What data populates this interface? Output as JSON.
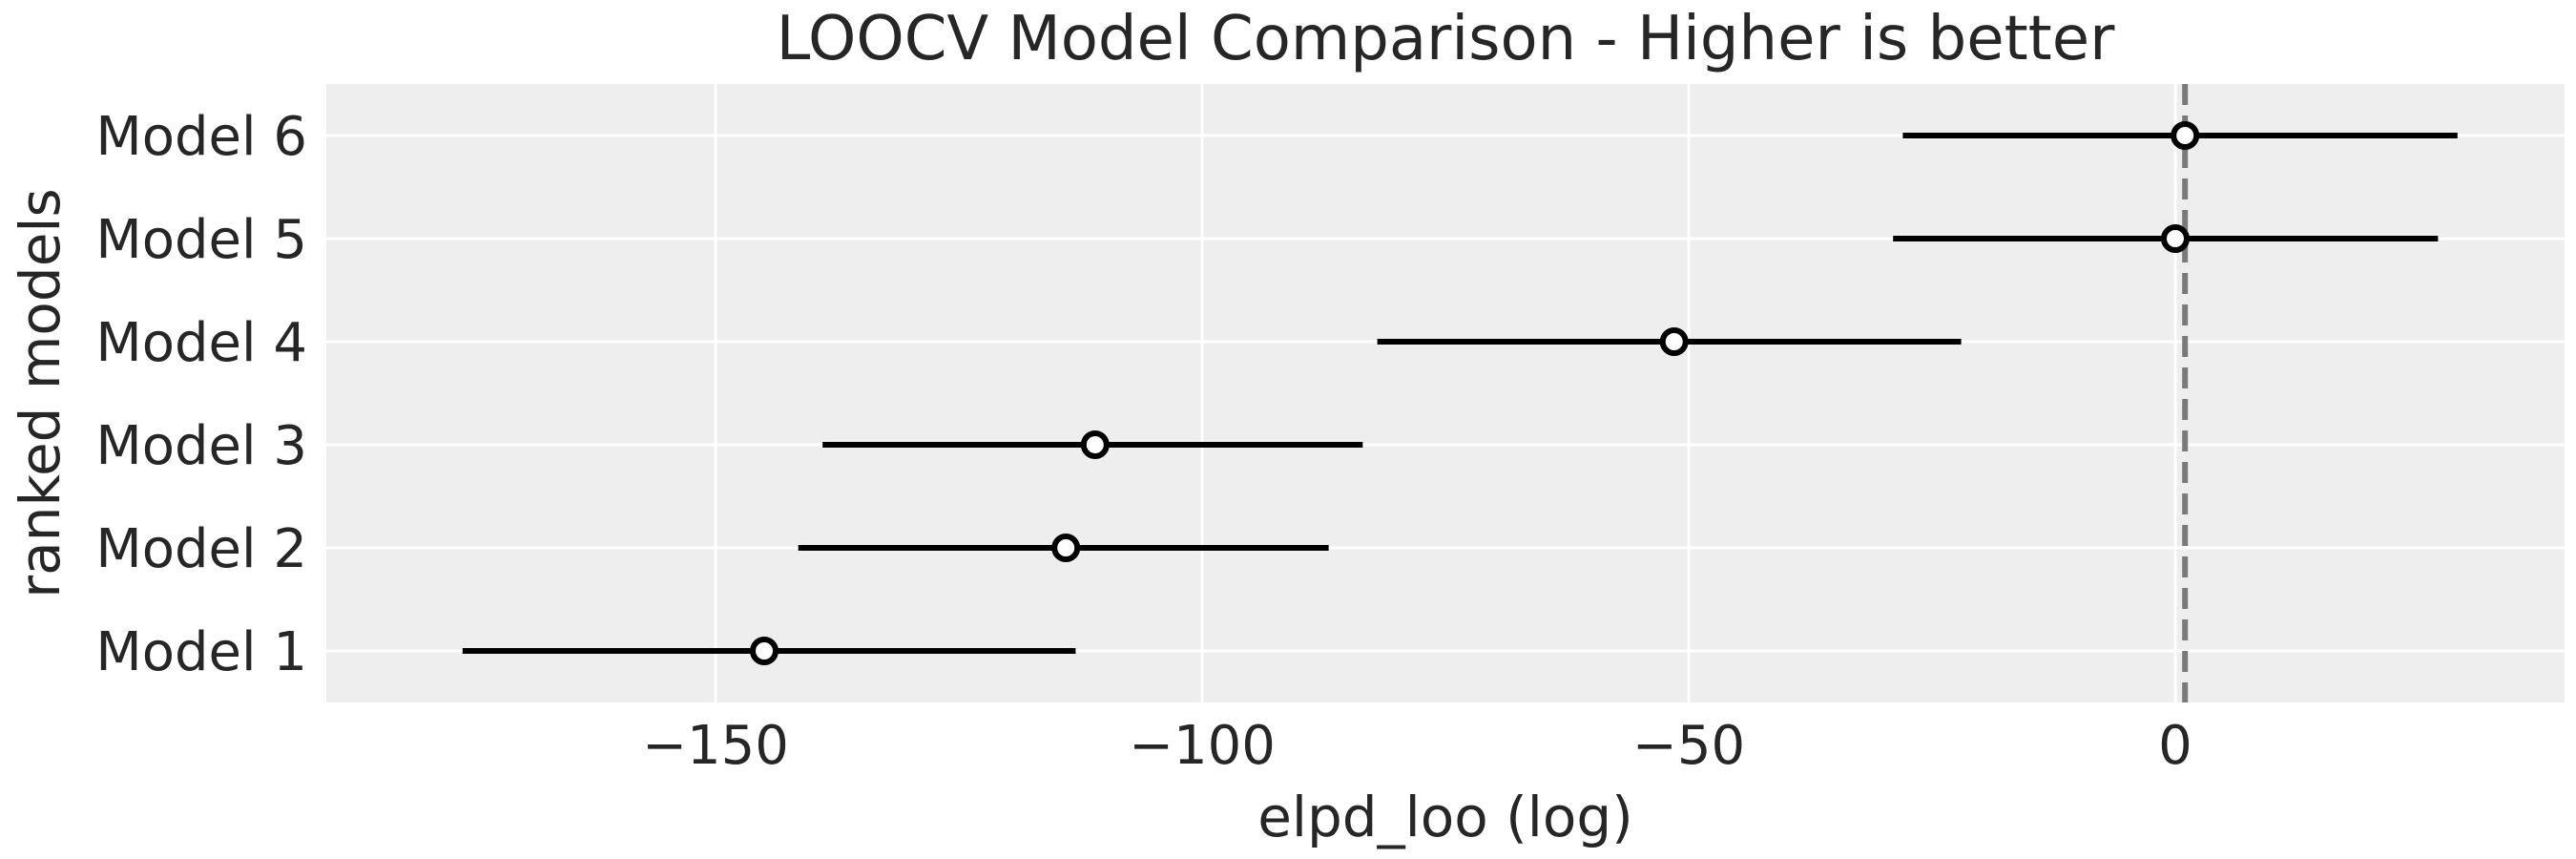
{
  "chart_data": {
    "type": "scatter",
    "title": "LOOCV Model Comparison - Higher is better",
    "xlabel": "elpd_loo (log)",
    "ylabel": "ranked models",
    "xlim": [
      -190,
      40
    ],
    "x_ticks": [
      -150,
      -100,
      -50,
      0
    ],
    "x_tick_labels": [
      "−150",
      "−100",
      "−50",
      "0"
    ],
    "grid": true,
    "reference_line": {
      "x": 1,
      "style": "dashed"
    },
    "models": [
      {
        "label": "Model 6",
        "elpd": 1,
        "lower": -28,
        "upper": 29
      },
      {
        "label": "Model 5",
        "elpd": 0,
        "lower": -29,
        "upper": 27
      },
      {
        "label": "Model 4",
        "elpd": -51.5,
        "lower": -82,
        "upper": -22
      },
      {
        "label": "Model 3",
        "elpd": -111,
        "lower": -139,
        "upper": -83.5
      },
      {
        "label": "Model 2",
        "elpd": -114,
        "lower": -141.5,
        "upper": -87
      },
      {
        "label": "Model 1",
        "elpd": -145,
        "lower": -176,
        "upper": -113
      }
    ],
    "colors": {
      "background": "#eeeeee",
      "grid": "#ffffff",
      "interval": "#000000",
      "marker_fill": "#ffffff",
      "marker_edge": "#000000",
      "reference": "#7a7a7a"
    }
  }
}
